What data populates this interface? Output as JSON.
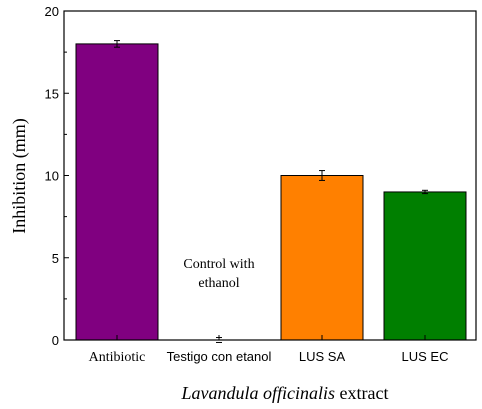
{
  "chart_data": {
    "type": "bar",
    "categories": [
      "Antibiotic",
      "Testigo con etanol",
      "LUS SA",
      "LUS EC"
    ],
    "values": [
      18.0,
      0.0,
      10.0,
      9.0
    ],
    "errors": [
      0.2,
      0.15,
      0.3,
      0.1
    ],
    "colors": [
      "#800080",
      "#ffffff",
      "#ff8000",
      "#007f00"
    ],
    "ylabel": "Inhibition (mm)",
    "xlabel_italic": "Lavandula officinalis",
    "xlabel_rest": " extract",
    "ylim": [
      0,
      20
    ],
    "yticks": [
      "0",
      "5",
      "10",
      "15",
      "20"
    ],
    "annotation_lines": [
      "Control with",
      "ethanol"
    ]
  }
}
